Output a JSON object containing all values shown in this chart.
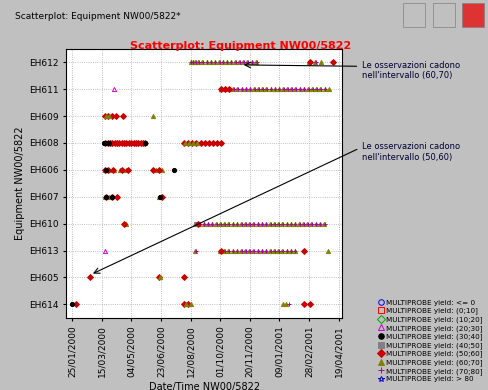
{
  "title": "Scatterplot: Equipment NW00/5822",
  "window_title": "Scatterplot: Equipment NW00/5822*",
  "xlabel": "Date/Time NW00/5822",
  "ylabel": "Equipment NW00/5822",
  "bg_color": "#c0c0c0",
  "plot_bg": "#ffffff",
  "title_color": "#ff0000",
  "titlebar_bg": "#a8c0d8",
  "y_categories": [
    "EH614",
    "EH605",
    "EH613",
    "EH610",
    "EH607",
    "EH606",
    "EH608",
    "EH609",
    "EH611",
    "EH612"
  ],
  "x_tick_dates": [
    "25/01/2000",
    "15/03/2000",
    "04/05/2000",
    "23/06/2000",
    "12/08/2000",
    "01/10/2000",
    "20/11/2000",
    "09/01/2001",
    "28/02/2001",
    "19/04/2001"
  ],
  "legend_entries": [
    {
      "label": "MULTIPROBE yield: <= 0",
      "marker": "o",
      "color": "#0000ff",
      "mfc": "none"
    },
    {
      "label": "MULTIPROBE yield: (0;10]",
      "marker": "s",
      "color": "#ff0000",
      "mfc": "none"
    },
    {
      "label": "MULTIPROBE yield: (10;20]",
      "marker": "D",
      "color": "#00aa00",
      "mfc": "none"
    },
    {
      "label": "MULTIPROBE yield: (20;30]",
      "marker": "^",
      "color": "#cc00cc",
      "mfc": "none"
    },
    {
      "label": "MULTIPROBE yield: (30;40]",
      "marker": "o",
      "color": "#000000",
      "mfc": "#000000"
    },
    {
      "label": "MULTIPROBE yield: (40;50]",
      "marker": "s",
      "color": "#808080",
      "mfc": "#808080"
    },
    {
      "label": "MULTIPROBE yield: (50;60]",
      "marker": "D",
      "color": "#cc0000",
      "mfc": "#cc0000"
    },
    {
      "label": "MULTIPROBE yield: (60;70]",
      "marker": "^",
      "color": "#808000",
      "mfc": "#808000"
    },
    {
      "label": "MULTIPROBE yield: (70;80]",
      "marker": "+",
      "color": "#aa00aa",
      "mfc": "none"
    },
    {
      "label": "MULTIPROBE yield: > 80",
      "marker": "*",
      "color": "#0000cc",
      "mfc": "none"
    }
  ],
  "annotation1_text": "Le osservazioni cadono\nnell'intervallo (60,70)",
  "annotation2_text": "Le osservazioni cadono\nnell'intervallo (50,60)",
  "marker_map": {
    "<=0": [
      "o",
      "#0000ff",
      "none"
    ],
    "(0;10]": [
      "s",
      "#ff0000",
      "none"
    ],
    "(10;20]": [
      "D",
      "#00aa00",
      "none"
    ],
    "(20;30]": [
      "^",
      "#cc00cc",
      "none"
    ],
    "(30;40]": [
      "o",
      "#000000",
      "#000000"
    ],
    "(40;50]": [
      "s",
      "#808080",
      "#808080"
    ],
    "(50;60]": [
      "D",
      "#cc0000",
      "#cc0000"
    ],
    "(60;70]": [
      "^",
      "#808000",
      "#808000"
    ],
    "(70;80]": [
      "+",
      "#aa00aa",
      "none"
    ],
    ">80": [
      "*",
      "#0000cc",
      "none"
    ]
  },
  "scatter_data": {
    "EH612": {
      "(60;70]": [
        "12/08/2000",
        "16/08/2000",
        "20/08/2000",
        "25/08/2000",
        "01/09/2000",
        "08/09/2000",
        "15/09/2000",
        "22/09/2000",
        "29/09/2000",
        "05/10/2000",
        "12/10/2000",
        "19/10/2000",
        "26/10/2000",
        "02/11/2000",
        "09/11/2000",
        "16/11/2000",
        "23/11/2000",
        "01/12/2000",
        "28/02/2001",
        "10/03/2001",
        "20/03/2001"
      ],
      "(70;80]": [
        "13/08/2000",
        "17/08/2000",
        "21/08/2000",
        "26/08/2000",
        "02/09/2000",
        "09/09/2000",
        "16/09/2000",
        "23/09/2000",
        "30/09/2000",
        "06/10/2000",
        "13/10/2000",
        "20/10/2000",
        "27/10/2000",
        "03/11/2000",
        "10/11/2000",
        "17/11/2000",
        "24/11/2000",
        "02/12/2000",
        "01/03/2001",
        "12/03/2001"
      ],
      "(50;60]": [
        "01/03/2001",
        "10/04/2001"
      ]
    },
    "EH611": {
      "(60;70]": [
        "02/10/2000",
        "09/10/2000",
        "16/10/2000",
        "23/10/2000",
        "30/10/2000",
        "06/11/2000",
        "13/11/2000",
        "20/11/2000",
        "27/11/2000",
        "04/12/2000",
        "11/12/2000",
        "18/12/2000",
        "25/12/2000",
        "01/01/2001",
        "08/01/2001",
        "15/01/2001",
        "22/01/2001",
        "29/01/2001",
        "05/02/2001",
        "12/02/2001",
        "19/02/2001",
        "26/02/2001",
        "05/03/2001",
        "12/03/2001",
        "19/03/2001",
        "26/03/2001",
        "02/04/2001"
      ],
      "(70;80]": [
        "03/10/2000",
        "10/10/2000",
        "17/10/2000",
        "24/10/2000",
        "31/10/2000",
        "07/11/2000",
        "14/11/2000",
        "21/11/2000",
        "28/11/2000",
        "05/12/2000",
        "12/12/2000",
        "19/12/2000",
        "26/12/2000",
        "02/01/2001",
        "09/01/2001",
        "16/01/2001",
        "23/01/2001",
        "30/01/2001",
        "06/02/2001",
        "13/02/2001",
        "20/02/2001",
        "27/02/2001",
        "06/03/2001",
        "13/03/2001",
        "20/03/2001",
        "27/03/2001"
      ],
      "(50;60]": [
        "02/10/2000",
        "09/10/2000",
        "16/10/2000"
      ],
      "(20;30]": [
        "05/04/2000"
      ]
    },
    "EH609": {
      "(50;60]": [
        "20/03/2000",
        "25/03/2000",
        "01/04/2000",
        "08/04/2000",
        "20/04/2000"
      ],
      "(60;70]": [
        "22/03/2000",
        "28/03/2000",
        "10/06/2000"
      ],
      "(30;40]": []
    },
    "EH608": {
      "(40;50]": [
        "20/03/2000",
        "24/03/2000",
        "28/03/2000",
        "01/04/2000",
        "05/04/2000",
        "09/04/2000",
        "13/04/2000",
        "17/04/2000",
        "21/04/2000",
        "25/04/2000",
        "29/04/2000",
        "03/05/2000",
        "07/05/2000",
        "11/05/2000",
        "15/05/2000",
        "19/05/2000",
        "23/05/2000",
        "27/05/2000"
      ],
      "(50;60]": [
        "21/03/2000",
        "25/03/2000",
        "29/03/2000",
        "02/04/2000",
        "06/04/2000",
        "10/04/2000",
        "14/04/2000",
        "18/04/2000",
        "22/04/2000",
        "26/04/2000",
        "30/04/2000",
        "04/05/2000",
        "08/05/2000",
        "12/05/2000",
        "16/05/2000",
        "20/05/2000",
        "24/05/2000",
        "28/05/2000",
        "01/08/2000",
        "08/08/2000",
        "15/08/2000",
        "22/08/2000",
        "29/08/2000",
        "05/09/2000",
        "12/09/2000",
        "19/09/2000",
        "26/09/2000",
        "03/10/2000"
      ],
      "(60;70]": [
        "02/08/2000",
        "09/08/2000",
        "16/08/2000",
        "23/08/2000"
      ],
      "(30;40]": [
        "19/03/2000",
        "23/03/2000",
        "27/03/2000",
        "28/05/2000"
      ]
    },
    "EH606": {
      "(60;70]": [
        "20/03/2000",
        "24/03/2000",
        "28/03/2000",
        "05/04/2000",
        "15/04/2000",
        "25/04/2000",
        "15/06/2000",
        "25/06/2000"
      ],
      "(50;60]": [
        "21/03/2000",
        "26/03/2000",
        "03/04/2000",
        "18/04/2000",
        "28/04/2000",
        "10/06/2000",
        "20/06/2000"
      ],
      "(30;40]": [
        "22/03/2000",
        "15/07/2000"
      ]
    },
    "EH607": {
      "(60;70]": [
        "20/03/2000",
        "28/03/2000",
        "20/06/2000"
      ],
      "(50;60]": [
        "22/03/2000",
        "01/04/2000",
        "10/04/2000",
        "25/06/2000"
      ],
      "(30;40]": [
        "23/03/2000",
        "02/04/2000",
        "22/06/2000"
      ]
    },
    "EH610": {
      "(60;70]": [
        "25/04/2000",
        "20/08/2000",
        "27/08/2000",
        "03/09/2000",
        "10/09/2000",
        "17/09/2000",
        "24/09/2000",
        "01/10/2000",
        "08/10/2000",
        "15/10/2000",
        "22/10/2000",
        "29/10/2000",
        "05/11/2000",
        "12/11/2000",
        "19/11/2000",
        "26/11/2000",
        "03/12/2000",
        "10/12/2000",
        "17/12/2000",
        "24/12/2000",
        "31/12/2000",
        "07/01/2001",
        "14/01/2001",
        "21/01/2001",
        "28/01/2001",
        "04/02/2001",
        "11/02/2001",
        "18/02/2001",
        "25/02/2001",
        "04/03/2001",
        "11/03/2001",
        "18/03/2001",
        "25/03/2001"
      ],
      "(70;80]": [
        "21/08/2000",
        "28/08/2000",
        "04/09/2000",
        "11/09/2000",
        "18/09/2000",
        "25/09/2000",
        "02/10/2000",
        "09/10/2000",
        "16/10/2000",
        "23/10/2000",
        "30/10/2000",
        "06/11/2000",
        "13/11/2000",
        "20/11/2000",
        "27/11/2000",
        "04/12/2000",
        "11/12/2000",
        "18/12/2000",
        "25/12/2000",
        "01/01/2001",
        "08/01/2001",
        "15/01/2001",
        "22/01/2001",
        "29/01/2001",
        "05/02/2001",
        "12/02/2001",
        "19/02/2001",
        "26/02/2001",
        "05/03/2001",
        "12/03/2001",
        "19/03/2001",
        "26/03/2001"
      ],
      "(40;50]": [
        "22/08/2000"
      ],
      "(50;60]": [
        "22/04/2000",
        "25/08/2000"
      ]
    },
    "EH613": {
      "(60;70]": [
        "20/08/2000",
        "01/10/2000",
        "08/10/2000",
        "15/10/2000",
        "22/10/2000",
        "29/10/2000",
        "05/11/2000",
        "12/11/2000",
        "19/11/2000",
        "26/11/2000",
        "03/12/2000",
        "10/12/2000",
        "17/12/2000",
        "24/12/2000",
        "31/12/2000",
        "07/01/2001",
        "14/01/2001",
        "21/01/2001",
        "28/01/2001",
        "04/02/2001",
        "01/04/2001"
      ],
      "(70;80]": [
        "21/08/2000",
        "02/10/2000",
        "09/10/2000",
        "16/10/2000",
        "23/10/2000",
        "30/10/2000",
        "06/11/2000",
        "13/11/2000",
        "20/11/2000",
        "27/11/2000",
        "04/12/2000",
        "11/12/2000",
        "18/12/2000",
        "25/12/2000",
        "01/01/2001",
        "08/01/2001",
        "15/01/2001",
        "22/01/2001",
        "29/01/2001",
        "05/02/2001"
      ],
      "(50;60]": [
        "02/10/2000",
        "20/02/2001"
      ],
      "(20;30]": [
        "20/03/2000"
      ]
    },
    "EH605": {
      "(50;60]": [
        "25/02/2000",
        "20/06/2000",
        "01/08/2000"
      ],
      "(60;70]": [
        "22/06/2000"
      ]
    },
    "EH614": {
      "(50;60]": [
        "01/02/2000",
        "01/08/2000",
        "08/08/2000",
        "20/02/2001",
        "01/03/2001"
      ],
      "(60;70]": [
        "05/08/2000",
        "12/08/2000",
        "15/01/2001",
        "20/01/2001"
      ],
      "(70;80]": [
        "25/01/2001"
      ],
      "(30;40]": [
        "25/01/2000"
      ]
    }
  }
}
